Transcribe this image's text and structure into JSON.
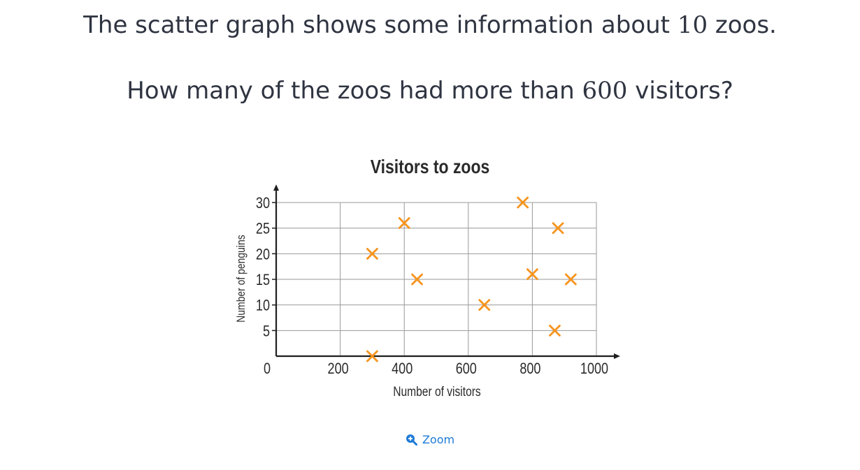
{
  "question": {
    "line1_before": "The scatter graph shows some information about ",
    "line1_number": "10",
    "line1_after": " zoos.",
    "line2_before": "How many of the zoos had more than ",
    "line2_number": "600",
    "line2_after": " visitors?"
  },
  "zoom": {
    "label": "Zoom",
    "icon": "zoom-in-icon"
  },
  "colors": {
    "marker": "#f7941d",
    "grid": "#9a9a9a",
    "axis": "#1f1f1f",
    "text": "#2f3441",
    "link": "#1e7bd8"
  },
  "chart_data": {
    "type": "scatter",
    "title": "Visitors to zoos",
    "xlabel": "Number of visitors",
    "ylabel": "Number of penguins",
    "xlim": [
      0,
      1000
    ],
    "ylim": [
      0,
      30
    ],
    "x_ticks": [
      0,
      200,
      400,
      600,
      800,
      1000
    ],
    "y_ticks": [
      0,
      5,
      10,
      15,
      20,
      25,
      30
    ],
    "grid": true,
    "marker": "x",
    "points": [
      {
        "x": 300,
        "y": 0
      },
      {
        "x": 300,
        "y": 20
      },
      {
        "x": 400,
        "y": 26
      },
      {
        "x": 440,
        "y": 15
      },
      {
        "x": 650,
        "y": 10
      },
      {
        "x": 770,
        "y": 30
      },
      {
        "x": 800,
        "y": 16
      },
      {
        "x": 870,
        "y": 5
      },
      {
        "x": 880,
        "y": 25
      },
      {
        "x": 920,
        "y": 15
      }
    ]
  }
}
